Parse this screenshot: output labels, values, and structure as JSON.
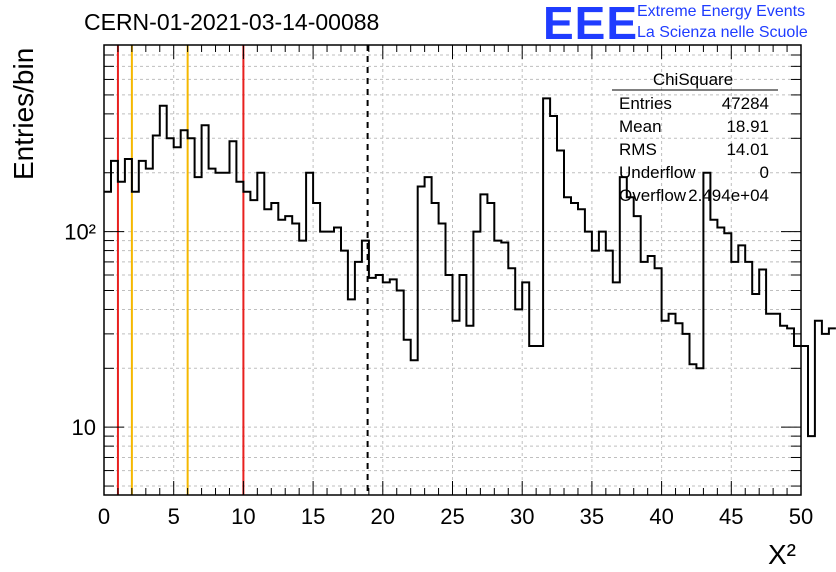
{
  "header": {
    "title": "CERN-01-2021-03-14-00088",
    "logo": "EEE",
    "logo_line1": "Extreme Energy Events",
    "logo_line2": "La Scienza nelle Scuole"
  },
  "stats_box": {
    "name": "ChiSquare",
    "rows": [
      {
        "label": "Entries",
        "value": "47284"
      },
      {
        "label": "Mean",
        "value": "18.91"
      },
      {
        "label": "RMS",
        "value": "14.01"
      },
      {
        "label": "Underflow",
        "value": "0"
      },
      {
        "label": "Overflow",
        "value": "2.494e+04"
      }
    ]
  },
  "colors": {
    "histogram": "#000000",
    "red_line": "#e8201e",
    "orange_line": "#f5b800",
    "grid": "#bfbfbf",
    "logo": "#1f3cff"
  },
  "chart_data": {
    "type": "histogram",
    "ylabel": "Entries/bin",
    "xlabel": "Χ²",
    "xlim": [
      0,
      50
    ],
    "ylim": [
      4.5,
      900
    ],
    "y_log_scale": true,
    "grid": true,
    "y_ticks": [
      {
        "value": 10,
        "label": "10"
      },
      {
        "value": 100,
        "label": "10²"
      }
    ],
    "x_ticks": [
      0,
      5,
      10,
      15,
      20,
      25,
      30,
      35,
      40,
      45,
      50
    ],
    "bin_width": 0.5,
    "values": [
      160,
      230,
      180,
      235,
      160,
      230,
      210,
      310,
      440,
      300,
      270,
      330,
      300,
      190,
      350,
      210,
      200,
      200,
      290,
      180,
      160,
      145,
      200,
      130,
      140,
      115,
      120,
      110,
      90,
      200,
      140,
      100,
      100,
      105,
      80,
      45,
      70,
      90,
      58,
      60,
      55,
      57,
      50,
      28,
      22,
      170,
      190,
      140,
      110,
      60,
      35,
      60,
      33,
      100,
      155,
      140,
      90,
      88,
      65,
      40,
      55,
      26,
      26,
      480,
      390,
      260,
      150,
      140,
      130,
      100,
      80,
      100,
      80,
      55,
      190,
      150,
      120,
      70,
      75,
      65,
      35,
      38,
      34,
      30,
      21,
      20,
      200,
      115,
      105,
      98,
      70,
      85,
      70,
      48,
      64,
      38,
      38,
      33,
      32,
      26,
      26,
      9,
      35,
      30,
      32
    ],
    "vertical_lines": [
      {
        "x": 1,
        "color": "red",
        "style": "solid"
      },
      {
        "x": 2,
        "color": "orange",
        "style": "solid"
      },
      {
        "x": 6,
        "color": "orange",
        "style": "solid"
      },
      {
        "x": 10,
        "color": "red",
        "style": "solid"
      },
      {
        "x": 18.91,
        "color": "black",
        "style": "dashed"
      }
    ]
  }
}
